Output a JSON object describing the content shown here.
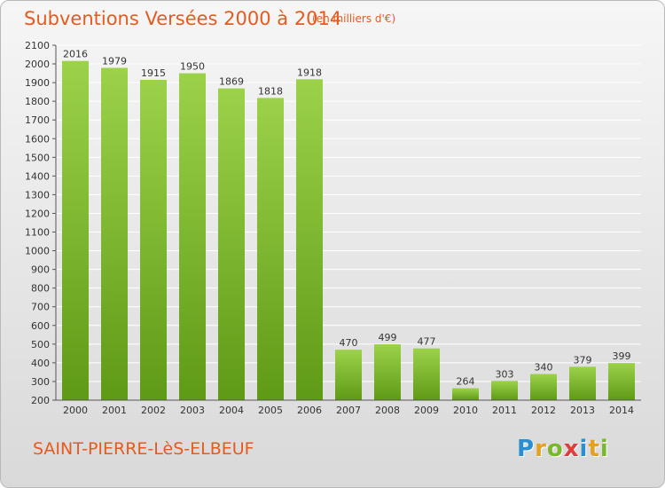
{
  "header": {
    "title": "Subventions Versées 2000 à 2014",
    "unit": "(en milliers d'€)"
  },
  "footer": {
    "commune": "SAINT-PIERRE-LèS-ELBEUF",
    "logo_letters": [
      "P",
      "r",
      "o",
      "x",
      "i",
      "t",
      "i"
    ],
    "logo_colors": [
      "#2a8fd0",
      "#e6a020",
      "#7ab82a",
      "#e23b3b",
      "#2a8fd0",
      "#e6a020",
      "#7ab82a"
    ]
  },
  "colors": {
    "accent": "#e65a1e",
    "bar_top": "#9cd24a",
    "bar_bottom": "#5f9a16",
    "grid": "#ffffff"
  },
  "chart_data": {
    "type": "bar",
    "categories": [
      "2000",
      "2001",
      "2002",
      "2003",
      "2004",
      "2005",
      "2006",
      "2007",
      "2008",
      "2009",
      "2010",
      "2011",
      "2012",
      "2013",
      "2014"
    ],
    "values": [
      2016,
      1979,
      1915,
      1950,
      1869,
      1818,
      1918,
      470,
      499,
      477,
      264,
      303,
      340,
      379,
      399
    ],
    "ylim": [
      200,
      2100
    ],
    "yticks": [
      200,
      300,
      400,
      500,
      600,
      700,
      800,
      900,
      1000,
      1100,
      1200,
      1300,
      1400,
      1500,
      1600,
      1700,
      1800,
      1900,
      2000,
      2100
    ],
    "grid": true,
    "data_labels": true
  }
}
